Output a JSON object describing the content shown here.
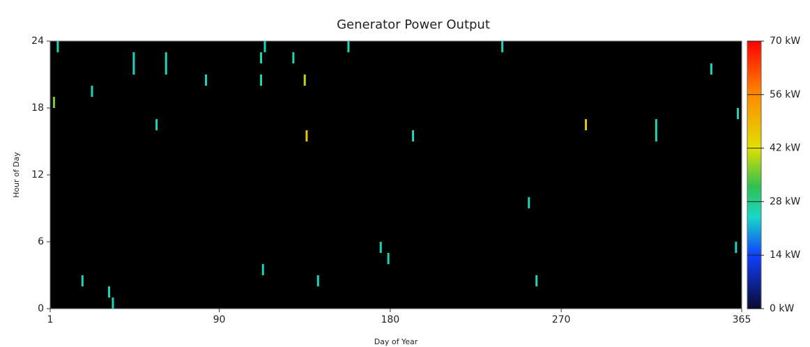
{
  "chart_data": {
    "type": "heatmap",
    "title": "Generator Power Output",
    "x_label": "Day of Year",
    "y_label": "Hour of Day",
    "xlim": [
      1,
      365
    ],
    "ylim": [
      0,
      24
    ],
    "xticks": [
      1,
      90,
      180,
      270,
      365
    ],
    "yticks": [
      0,
      6,
      12,
      18,
      24
    ],
    "clim": [
      0,
      70
    ],
    "cticks": [
      {
        "value": 0,
        "label": "0 kW"
      },
      {
        "value": 14,
        "label": "14 kW"
      },
      {
        "value": 28,
        "label": "28 kW"
      },
      {
        "value": 42,
        "label": "42 kW"
      },
      {
        "value": 56,
        "label": "56 kW"
      },
      {
        "value": 70,
        "label": "70 kW"
      }
    ],
    "colorscale": [
      [
        0,
        "#0a0a30"
      ],
      [
        14,
        "#1040ff"
      ],
      [
        24,
        "#18d8c8"
      ],
      [
        32,
        "#30c050"
      ],
      [
        42,
        "#e0e000"
      ],
      [
        56,
        "#ff8a00"
      ],
      [
        70,
        "#ff0000"
      ]
    ],
    "background": "#000000",
    "x": [
      5,
      3,
      23,
      45,
      45,
      62,
      62,
      57,
      83,
      18,
      32,
      34,
      114,
      112,
      112,
      129,
      135,
      136,
      158,
      192,
      175,
      179,
      113,
      142,
      239,
      253,
      257,
      283,
      320,
      320,
      349,
      363,
      362
    ],
    "y": [
      23,
      18,
      19,
      22,
      21,
      22,
      21,
      16,
      20,
      2,
      1,
      0,
      23,
      22,
      20,
      22,
      20,
      15,
      23,
      15,
      5,
      4,
      3,
      2,
      23,
      9,
      2,
      16,
      15,
      16,
      21,
      17,
      5
    ],
    "values": [
      25,
      36,
      25,
      25,
      25,
      25,
      25,
      25,
      25,
      25,
      25,
      25,
      25,
      25,
      25,
      25,
      40,
      46,
      25,
      25,
      25,
      25,
      25,
      25,
      25,
      25,
      25,
      46,
      25,
      25,
      25,
      25,
      25
    ]
  }
}
